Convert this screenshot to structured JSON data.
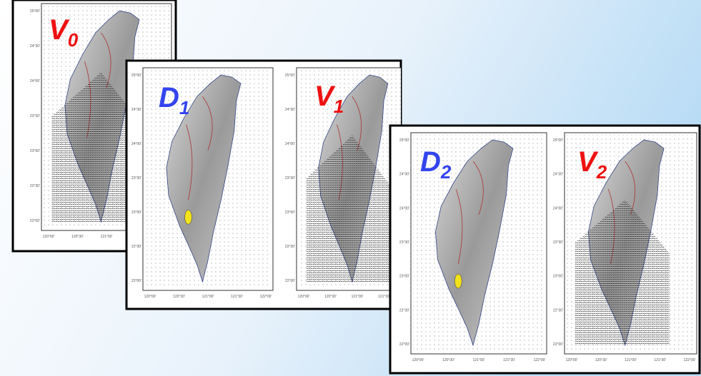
{
  "panels": [
    {
      "letter": "V",
      "sub": "0"
    },
    {
      "letter": "D",
      "sub": "1"
    },
    {
      "letter": "V",
      "sub": "1"
    },
    {
      "letter": "D",
      "sub": "2"
    },
    {
      "letter": "V",
      "sub": "2"
    }
  ],
  "lat_ticks": [
    "25°00'",
    "24°30'",
    "24°00'",
    "23°30'",
    "23°00'",
    "22°30'",
    "22°00'"
  ],
  "lon_ticks": [
    "120°00'",
    "120°30'",
    "121°00'",
    "121°30'",
    "122°00'"
  ]
}
